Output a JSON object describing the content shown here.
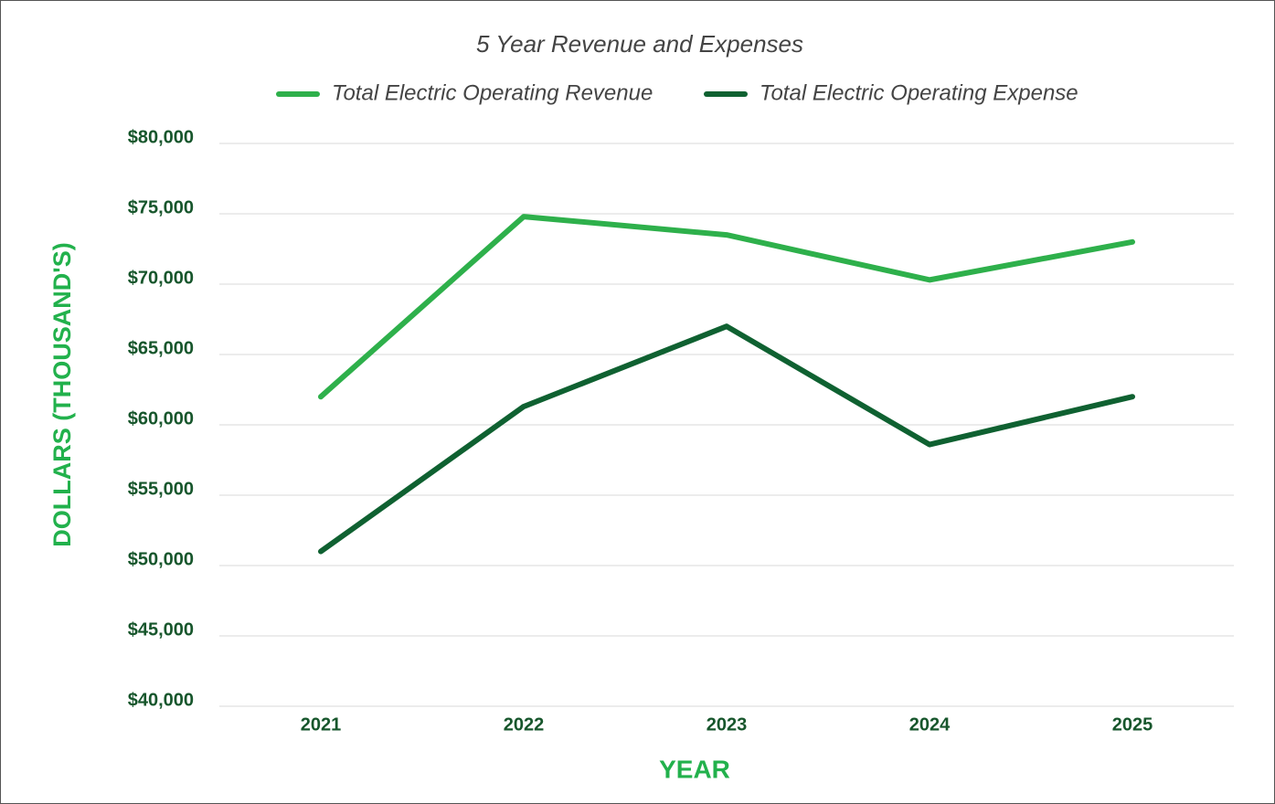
{
  "chart_data": {
    "type": "line",
    "title": "5 Year Revenue and Expenses",
    "x_label": "YEAR",
    "y_label": "DOLLARS (THOUSAND'S)",
    "categories": [
      "2021",
      "2022",
      "2023",
      "2024",
      "2025"
    ],
    "series": [
      {
        "name": "Total Electric Operating Revenue",
        "color": "#2eb04b",
        "values": [
          62000,
          74800,
          73500,
          70300,
          73000
        ]
      },
      {
        "name": "Total Electric Operating Expense",
        "color": "#0f6131",
        "values": [
          51000,
          61300,
          67000,
          58600,
          62000
        ]
      }
    ],
    "ylim": [
      40000,
      80000
    ],
    "yticks": [
      {
        "value": 40000,
        "label": "$40,000"
      },
      {
        "value": 45000,
        "label": "$45,000"
      },
      {
        "value": 50000,
        "label": "$50,000"
      },
      {
        "value": 55000,
        "label": "$55,000"
      },
      {
        "value": 60000,
        "label": "$60,000"
      },
      {
        "value": 65000,
        "label": "$65,000"
      },
      {
        "value": 70000,
        "label": "$70,000"
      },
      {
        "value": 75000,
        "label": "$75,000"
      },
      {
        "value": 80000,
        "label": "$80,000"
      }
    ],
    "grid": true,
    "legend": "top"
  }
}
